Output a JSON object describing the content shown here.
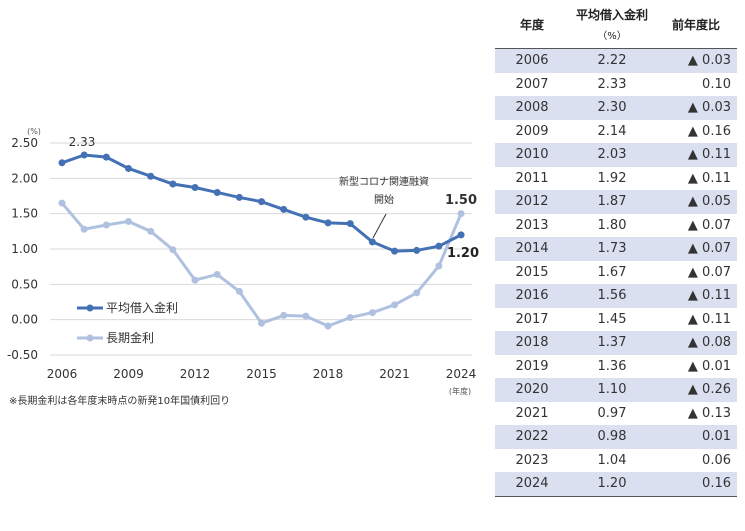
{
  "chart_data": {
    "type": "line",
    "unit_label": "(%)",
    "x_unit_label": "(年度)",
    "x": [
      2006,
      2007,
      2008,
      2009,
      2010,
      2011,
      2012,
      2013,
      2014,
      2015,
      2016,
      2017,
      2018,
      2019,
      2020,
      2021,
      2022,
      2023,
      2024
    ],
    "x_ticks": [
      "2006",
      "2009",
      "2012",
      "2015",
      "2018",
      "2021",
      "2024"
    ],
    "y_ticks": [
      "2.50",
      "2.00",
      "1.50",
      "1.00",
      "0.50",
      "0.00",
      "-0.50"
    ],
    "ylim": [
      -0.5,
      2.5
    ],
    "grid": true,
    "legend_placement": "bottom-left",
    "series": [
      {
        "name": "平均借入金利",
        "color": "#4470b4",
        "values": [
          2.22,
          2.33,
          2.3,
          2.14,
          2.03,
          1.92,
          1.87,
          1.8,
          1.73,
          1.67,
          1.56,
          1.45,
          1.37,
          1.36,
          1.1,
          0.97,
          0.98,
          1.04,
          1.2
        ]
      },
      {
        "name": "長期金利",
        "color": "#b0c1e0",
        "values": [
          1.65,
          1.28,
          1.34,
          1.39,
          1.25,
          0.99,
          0.56,
          0.64,
          0.4,
          -0.05,
          0.06,
          0.05,
          -0.09,
          0.03,
          0.1,
          0.21,
          0.38,
          0.76,
          1.5
        ]
      }
    ],
    "annotations": [
      {
        "text": "2.33"
      },
      {
        "text": "1.50"
      },
      {
        "text": "1.20"
      },
      {
        "text1": "新型コロナ関連融資",
        "text2": "開始"
      }
    ],
    "note": "※長期金利は各年度末時点の新発10年国債利回り"
  },
  "table": {
    "headers": {
      "year": "年度",
      "rate": "平均借入金利",
      "rate_unit": "（%）",
      "diff": "前年度比"
    },
    "rows": [
      [
        "2006",
        "2.22",
        "▲ 0.03"
      ],
      [
        "2007",
        "2.33",
        "0.10"
      ],
      [
        "2008",
        "2.30",
        "▲ 0.03"
      ],
      [
        "2009",
        "2.14",
        "▲ 0.16"
      ],
      [
        "2010",
        "2.03",
        "▲ 0.11"
      ],
      [
        "2011",
        "1.92",
        "▲ 0.11"
      ],
      [
        "2012",
        "1.87",
        "▲ 0.05"
      ],
      [
        "2013",
        "1.80",
        "▲ 0.07"
      ],
      [
        "2014",
        "1.73",
        "▲ 0.07"
      ],
      [
        "2015",
        "1.67",
        "▲ 0.07"
      ],
      [
        "2016",
        "1.56",
        "▲ 0.11"
      ],
      [
        "2017",
        "1.45",
        "▲ 0.11"
      ],
      [
        "2018",
        "1.37",
        "▲ 0.08"
      ],
      [
        "2019",
        "1.36",
        "▲ 0.01"
      ],
      [
        "2020",
        "1.10",
        "▲ 0.26"
      ],
      [
        "2021",
        "0.97",
        "▲ 0.13"
      ],
      [
        "2022",
        "0.98",
        "0.01"
      ],
      [
        "2023",
        "1.04",
        "0.06"
      ],
      [
        "2024",
        "1.20",
        "0.16"
      ]
    ]
  }
}
